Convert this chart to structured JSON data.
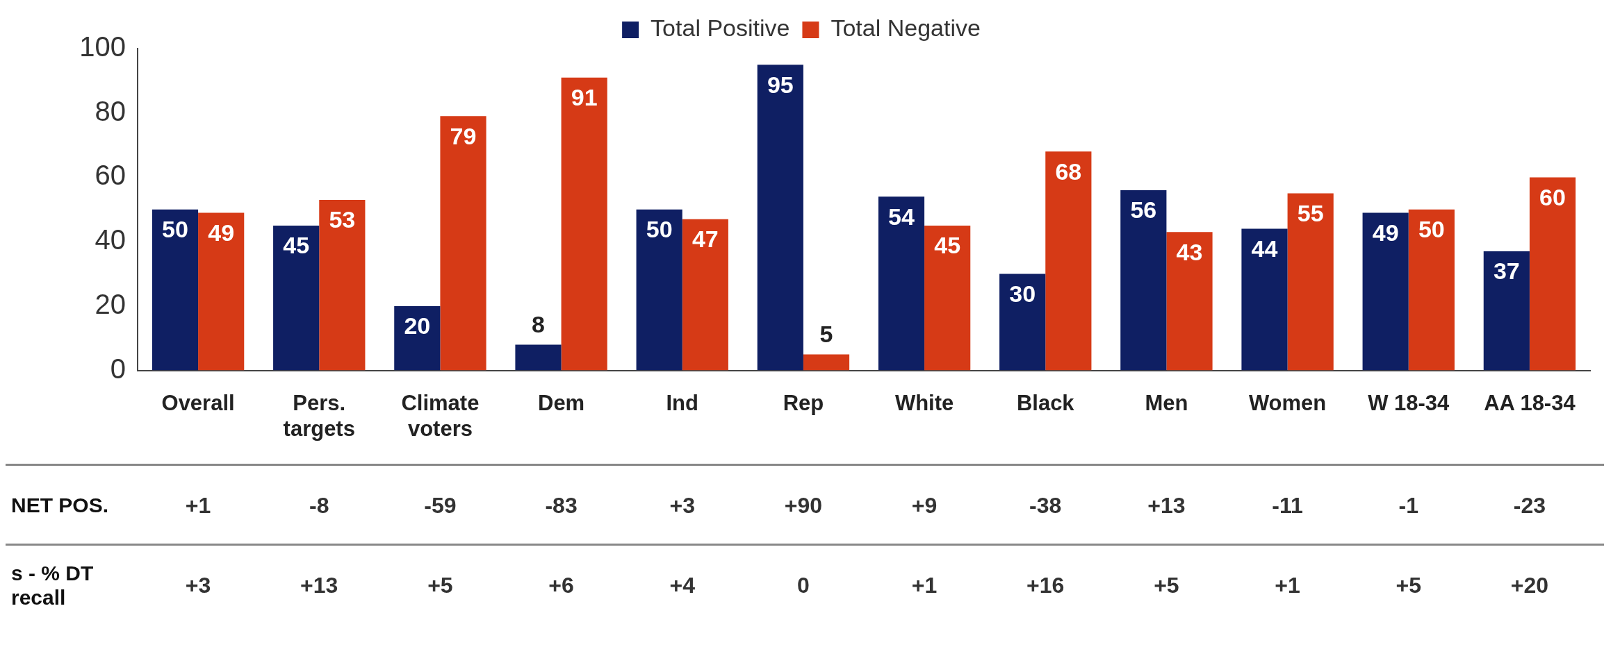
{
  "chart_data": {
    "type": "bar",
    "categories": [
      "Overall",
      "Pers. targets",
      "Climate voters",
      "Dem",
      "Ind",
      "Rep",
      "White",
      "Black",
      "Men",
      "Women",
      "W 18-34",
      "AA 18-34"
    ],
    "series": [
      {
        "name": "Total Positive",
        "color": "#0f1f63",
        "values": [
          50,
          45,
          20,
          8,
          50,
          95,
          54,
          30,
          56,
          44,
          49,
          37
        ]
      },
      {
        "name": "Total Negative",
        "color": "#d63a16",
        "values": [
          49,
          53,
          79,
          91,
          47,
          5,
          45,
          68,
          43,
          55,
          50,
          60
        ]
      }
    ],
    "ylim": [
      0,
      100
    ],
    "yticks": [
      0,
      20,
      40,
      60,
      80,
      100
    ],
    "grid": false,
    "legend": "top",
    "data_labels": true,
    "annotations": [
      "NET POS.",
      "+1",
      "-8",
      "-59",
      "-83",
      "+3",
      "+90",
      "+9",
      "-38",
      "+13",
      "-11",
      "-1",
      "-23",
      "s - % DT recall",
      "+3",
      "+13",
      "+5",
      "+6",
      "+4",
      "0",
      "+1",
      "+16",
      "+5",
      "+1",
      "+5",
      "+20"
    ]
  }
}
